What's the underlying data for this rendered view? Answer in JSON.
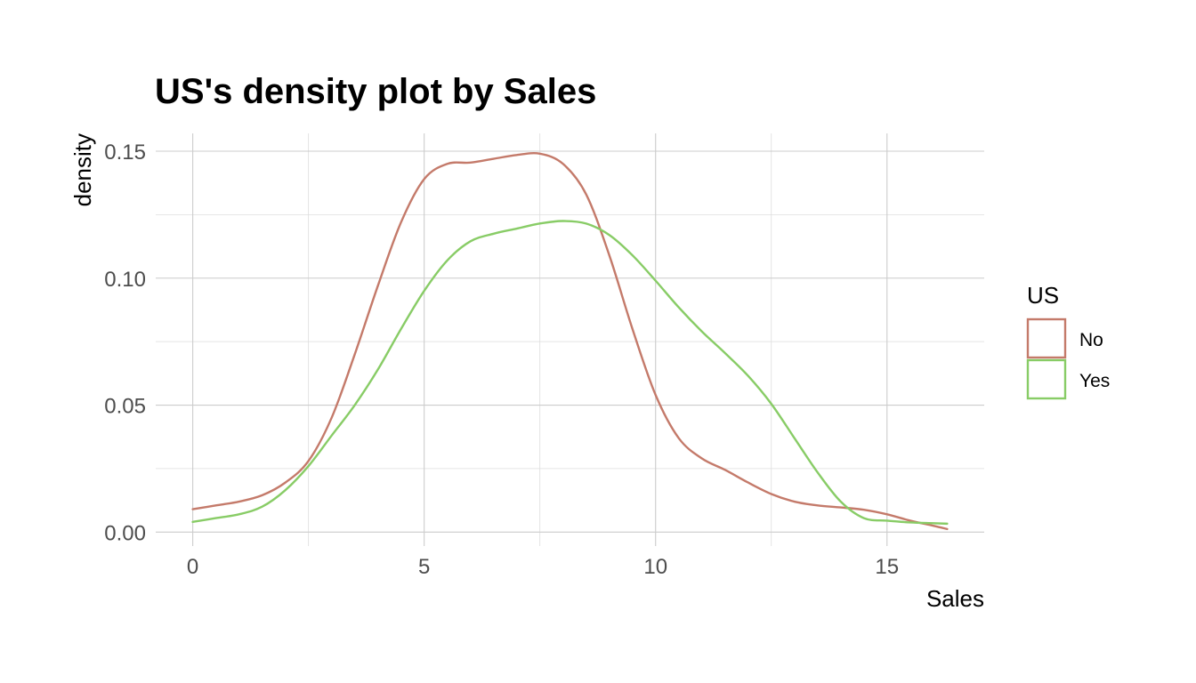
{
  "chart_data": {
    "type": "line",
    "title": "US's density plot by Sales",
    "xlabel": "Sales",
    "ylabel": "density",
    "xlim": [
      -0.8,
      17.1
    ],
    "ylim": [
      -0.0055,
      0.157
    ],
    "x_ticks": [
      0,
      5,
      10,
      15
    ],
    "x_tick_labels": [
      "0",
      "5",
      "10",
      "15"
    ],
    "x_minor_ticks": [
      2.5,
      7.5,
      12.5
    ],
    "y_ticks": [
      0,
      0.05,
      0.1,
      0.15
    ],
    "y_tick_labels": [
      "0.00",
      "0.05",
      "0.10",
      "0.15"
    ],
    "y_minor_ticks": [
      0.025,
      0.075,
      0.125
    ],
    "grid": true,
    "legend": {
      "title": "US",
      "position": "right"
    },
    "series": [
      {
        "name": "No",
        "color": "#c47a6a",
        "x": [
          0,
          0.5,
          1,
          1.5,
          2,
          2.5,
          3,
          3.5,
          4,
          4.5,
          5,
          5.5,
          6,
          6.5,
          7,
          7.5,
          8,
          8.5,
          9,
          9.5,
          10,
          10.5,
          11,
          11.5,
          12,
          12.5,
          13,
          13.5,
          14,
          14.5,
          15,
          15.5,
          16,
          16.3
        ],
        "values": [
          0.009,
          0.0105,
          0.012,
          0.0145,
          0.0195,
          0.028,
          0.045,
          0.07,
          0.097,
          0.122,
          0.139,
          0.145,
          0.1455,
          0.147,
          0.1485,
          0.149,
          0.145,
          0.133,
          0.109,
          0.08,
          0.054,
          0.037,
          0.029,
          0.0245,
          0.0195,
          0.015,
          0.012,
          0.0105,
          0.0097,
          0.0088,
          0.007,
          0.0045,
          0.0025,
          0.0012
        ]
      },
      {
        "name": "Yes",
        "color": "#88cc66",
        "x": [
          0,
          0.5,
          1,
          1.5,
          2,
          2.5,
          3,
          3.5,
          4,
          4.5,
          5,
          5.5,
          6,
          6.5,
          7,
          7.5,
          8,
          8.5,
          9,
          9.5,
          10,
          10.5,
          11,
          11.5,
          12,
          12.5,
          13,
          13.5,
          14,
          14.5,
          15,
          15.5,
          16,
          16.3
        ],
        "values": [
          0.004,
          0.0055,
          0.007,
          0.01,
          0.0165,
          0.026,
          0.038,
          0.05,
          0.064,
          0.08,
          0.095,
          0.107,
          0.1145,
          0.1175,
          0.1195,
          0.1215,
          0.1225,
          0.1215,
          0.117,
          0.109,
          0.099,
          0.0885,
          0.079,
          0.0705,
          0.0615,
          0.0505,
          0.037,
          0.0235,
          0.012,
          0.0055,
          0.0045,
          0.0038,
          0.0035,
          0.0033
        ]
      }
    ]
  }
}
